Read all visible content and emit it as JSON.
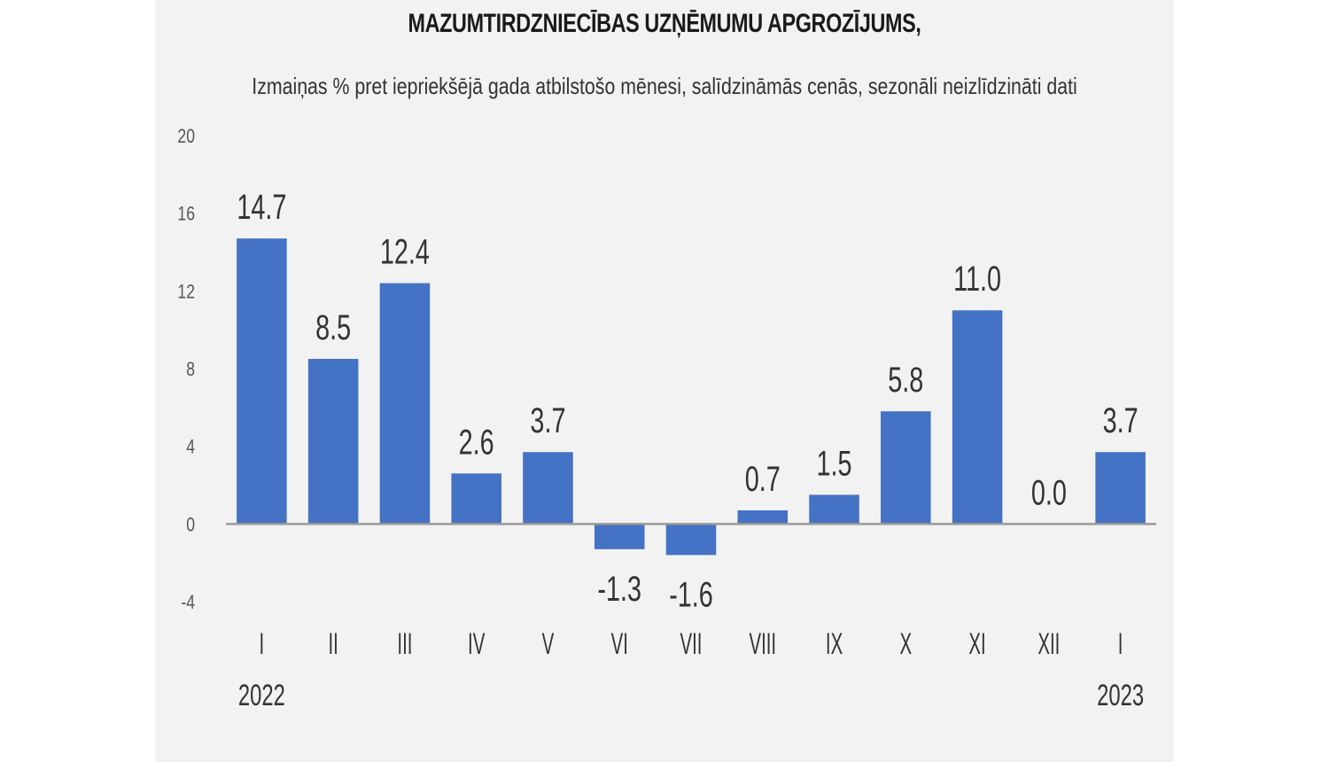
{
  "chart_data": {
    "type": "bar",
    "title": "MAZUMTIRDZNIECĪBAS UZŅĒMUMU APGROZĪJUMS,",
    "subtitle": "Izmaiņas % pret iepriekšējā gada atbilstošo mēnesi, salīdzināmās cenās, sezonāli neizlīdzināti dati",
    "categories": [
      "I",
      "II",
      "III",
      "IV",
      "V",
      "VI",
      "VII",
      "VIII",
      "IX",
      "X",
      "XI",
      "XII",
      "I"
    ],
    "year_labels": [
      {
        "category_index": 0,
        "label": "2022"
      },
      {
        "category_index": 12,
        "label": "2023"
      }
    ],
    "values": [
      14.7,
      8.5,
      12.4,
      2.6,
      3.7,
      -1.3,
      -1.6,
      0.7,
      1.5,
      5.8,
      11.0,
      0.0,
      3.7
    ],
    "data_labels": [
      "14.7",
      "8.5",
      "12.4",
      "2.6",
      "3.7",
      "-1.3",
      "-1.6",
      "0.7",
      "1.5",
      "5.8",
      "11.0",
      "0.0",
      "3.7"
    ],
    "ylim": [
      -4,
      20
    ],
    "yticks": [
      -4,
      0,
      4,
      8,
      12,
      16,
      20
    ],
    "grid": false,
    "legend": "none",
    "xlabel": "",
    "ylabel": "",
    "bar_color": "#4472c4",
    "axis_color": "#9a9a9a",
    "text_color": "#333333"
  }
}
